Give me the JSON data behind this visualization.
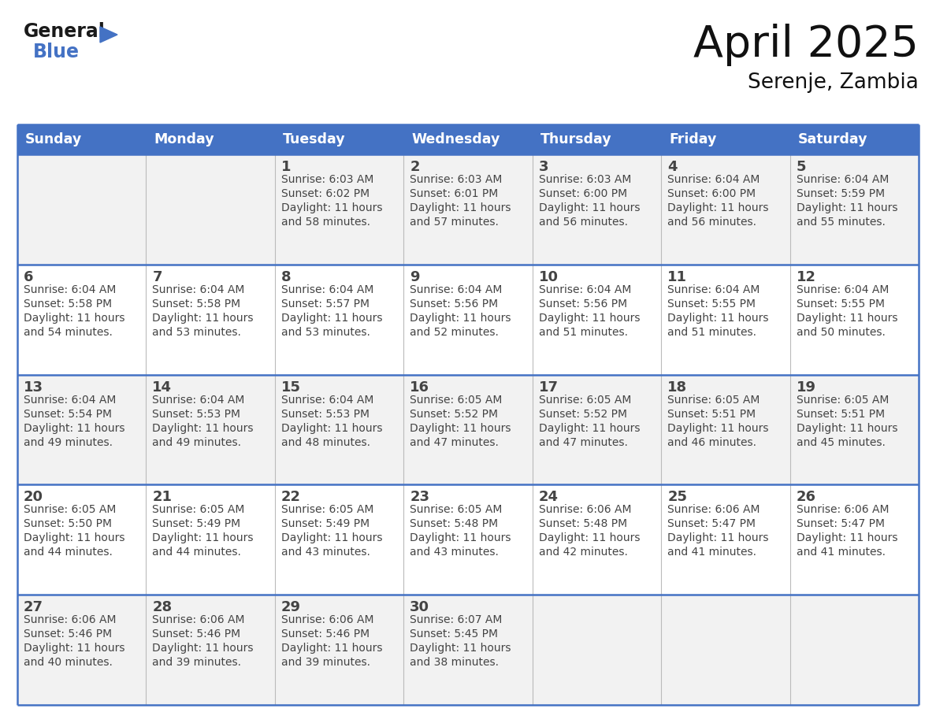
{
  "title": "April 2025",
  "subtitle": "Serenje, Zambia",
  "header_bg_color": "#4472C4",
  "header_text_color": "#FFFFFF",
  "row_bg_colors": [
    "#F2F2F2",
    "#FFFFFF"
  ],
  "border_color": "#4472C4",
  "inner_border_color": "#AAAAAA",
  "text_color": "#444444",
  "days_of_week": [
    "Sunday",
    "Monday",
    "Tuesday",
    "Wednesday",
    "Thursday",
    "Friday",
    "Saturday"
  ],
  "calendar_data": [
    [
      {
        "day": "",
        "sunrise": "",
        "sunset": "",
        "daylight": ""
      },
      {
        "day": "",
        "sunrise": "",
        "sunset": "",
        "daylight": ""
      },
      {
        "day": "1",
        "sunrise": "6:03 AM",
        "sunset": "6:02 PM",
        "daylight": "11 hours and 58 minutes."
      },
      {
        "day": "2",
        "sunrise": "6:03 AM",
        "sunset": "6:01 PM",
        "daylight": "11 hours and 57 minutes."
      },
      {
        "day": "3",
        "sunrise": "6:03 AM",
        "sunset": "6:00 PM",
        "daylight": "11 hours and 56 minutes."
      },
      {
        "day": "4",
        "sunrise": "6:04 AM",
        "sunset": "6:00 PM",
        "daylight": "11 hours and 56 minutes."
      },
      {
        "day": "5",
        "sunrise": "6:04 AM",
        "sunset": "5:59 PM",
        "daylight": "11 hours and 55 minutes."
      }
    ],
    [
      {
        "day": "6",
        "sunrise": "6:04 AM",
        "sunset": "5:58 PM",
        "daylight": "11 hours and 54 minutes."
      },
      {
        "day": "7",
        "sunrise": "6:04 AM",
        "sunset": "5:58 PM",
        "daylight": "11 hours and 53 minutes."
      },
      {
        "day": "8",
        "sunrise": "6:04 AM",
        "sunset": "5:57 PM",
        "daylight": "11 hours and 53 minutes."
      },
      {
        "day": "9",
        "sunrise": "6:04 AM",
        "sunset": "5:56 PM",
        "daylight": "11 hours and 52 minutes."
      },
      {
        "day": "10",
        "sunrise": "6:04 AM",
        "sunset": "5:56 PM",
        "daylight": "11 hours and 51 minutes."
      },
      {
        "day": "11",
        "sunrise": "6:04 AM",
        "sunset": "5:55 PM",
        "daylight": "11 hours and 51 minutes."
      },
      {
        "day": "12",
        "sunrise": "6:04 AM",
        "sunset": "5:55 PM",
        "daylight": "11 hours and 50 minutes."
      }
    ],
    [
      {
        "day": "13",
        "sunrise": "6:04 AM",
        "sunset": "5:54 PM",
        "daylight": "11 hours and 49 minutes."
      },
      {
        "day": "14",
        "sunrise": "6:04 AM",
        "sunset": "5:53 PM",
        "daylight": "11 hours and 49 minutes."
      },
      {
        "day": "15",
        "sunrise": "6:04 AM",
        "sunset": "5:53 PM",
        "daylight": "11 hours and 48 minutes."
      },
      {
        "day": "16",
        "sunrise": "6:05 AM",
        "sunset": "5:52 PM",
        "daylight": "11 hours and 47 minutes."
      },
      {
        "day": "17",
        "sunrise": "6:05 AM",
        "sunset": "5:52 PM",
        "daylight": "11 hours and 47 minutes."
      },
      {
        "day": "18",
        "sunrise": "6:05 AM",
        "sunset": "5:51 PM",
        "daylight": "11 hours and 46 minutes."
      },
      {
        "day": "19",
        "sunrise": "6:05 AM",
        "sunset": "5:51 PM",
        "daylight": "11 hours and 45 minutes."
      }
    ],
    [
      {
        "day": "20",
        "sunrise": "6:05 AM",
        "sunset": "5:50 PM",
        "daylight": "11 hours and 44 minutes."
      },
      {
        "day": "21",
        "sunrise": "6:05 AM",
        "sunset": "5:49 PM",
        "daylight": "11 hours and 44 minutes."
      },
      {
        "day": "22",
        "sunrise": "6:05 AM",
        "sunset": "5:49 PM",
        "daylight": "11 hours and 43 minutes."
      },
      {
        "day": "23",
        "sunrise": "6:05 AM",
        "sunset": "5:48 PM",
        "daylight": "11 hours and 43 minutes."
      },
      {
        "day": "24",
        "sunrise": "6:06 AM",
        "sunset": "5:48 PM",
        "daylight": "11 hours and 42 minutes."
      },
      {
        "day": "25",
        "sunrise": "6:06 AM",
        "sunset": "5:47 PM",
        "daylight": "11 hours and 41 minutes."
      },
      {
        "day": "26",
        "sunrise": "6:06 AM",
        "sunset": "5:47 PM",
        "daylight": "11 hours and 41 minutes."
      }
    ],
    [
      {
        "day": "27",
        "sunrise": "6:06 AM",
        "sunset": "5:46 PM",
        "daylight": "11 hours and 40 minutes."
      },
      {
        "day": "28",
        "sunrise": "6:06 AM",
        "sunset": "5:46 PM",
        "daylight": "11 hours and 39 minutes."
      },
      {
        "day": "29",
        "sunrise": "6:06 AM",
        "sunset": "5:46 PM",
        "daylight": "11 hours and 39 minutes."
      },
      {
        "day": "30",
        "sunrise": "6:07 AM",
        "sunset": "5:45 PM",
        "daylight": "11 hours and 38 minutes."
      },
      {
        "day": "",
        "sunrise": "",
        "sunset": "",
        "daylight": ""
      },
      {
        "day": "",
        "sunrise": "",
        "sunset": "",
        "daylight": ""
      },
      {
        "day": "",
        "sunrise": "",
        "sunset": "",
        "daylight": ""
      }
    ]
  ],
  "logo_general_color": "#1a1a1a",
  "logo_blue_color": "#4472C4",
  "logo_triangle_color": "#4472C4"
}
